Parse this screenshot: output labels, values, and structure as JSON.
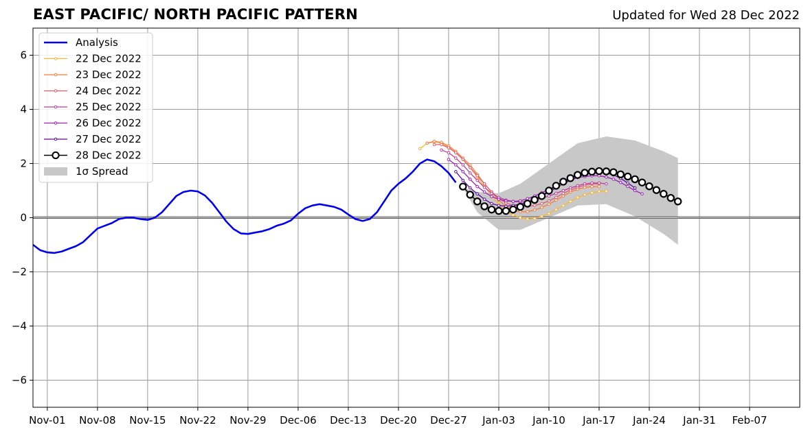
{
  "header": {
    "title": "EAST PACIFIC/ NORTH PACIFIC PATTERN",
    "updated": "Updated for Wed 28 Dec 2022"
  },
  "chart_data": {
    "type": "line",
    "xlabel": "",
    "ylabel": "",
    "x_range": [
      "2022-10-30",
      "2023-02-14"
    ],
    "ylim": [
      -7,
      7
    ],
    "yticks": [
      -6,
      -4,
      -2,
      0,
      2,
      4,
      6
    ],
    "ytick_labels": [
      "−6",
      "−4",
      "−2",
      "0",
      "2",
      "4",
      "6"
    ],
    "xticks": [
      "2022-11-01",
      "2022-11-08",
      "2022-11-15",
      "2022-11-22",
      "2022-11-29",
      "2022-12-06",
      "2022-12-13",
      "2022-12-20",
      "2022-12-27",
      "2023-01-03",
      "2023-01-10",
      "2023-01-17",
      "2023-01-24",
      "2023-01-31",
      "2023-02-07"
    ],
    "xtick_labels": [
      "Nov-01",
      "Nov-08",
      "Nov-15",
      "Nov-22",
      "Nov-29",
      "Dec-06",
      "Dec-13",
      "Dec-20",
      "Dec-27",
      "Jan-03",
      "Jan-10",
      "Jan-17",
      "Jan-24",
      "Jan-31",
      "Feb-07"
    ],
    "grid": true,
    "legend_position": "top-left",
    "legend": [
      "Analysis",
      "22 Dec 2022",
      "23 Dec 2022",
      "24 Dec 2022",
      "25 Dec 2022",
      "26 Dec 2022",
      "27 Dec 2022",
      "28 Dec 2022",
      "1σ Spread"
    ],
    "spread": {
      "name": "1σ Spread",
      "color": "#c8c8c8",
      "x": [
        "2022-12-29",
        "2022-12-31",
        "2023-01-03",
        "2023-01-06",
        "2023-01-10",
        "2023-01-14",
        "2023-01-18",
        "2023-01-22",
        "2023-01-26",
        "2023-01-28"
      ],
      "upper": [
        1.1,
        0.95,
        0.9,
        1.25,
        2.0,
        2.75,
        3.0,
        2.85,
        2.45,
        2.2
      ],
      "lower": [
        1.1,
        0.2,
        -0.45,
        -0.45,
        0.0,
        0.45,
        0.5,
        0.05,
        -0.6,
        -1.0
      ]
    },
    "analysis": {
      "name": "Analysis",
      "color": "#0000ee",
      "x": [
        "2022-10-30",
        "2022-10-31",
        "2022-11-01",
        "2022-11-02",
        "2022-11-03",
        "2022-11-04",
        "2022-11-05",
        "2022-11-06",
        "2022-11-07",
        "2022-11-08",
        "2022-11-09",
        "2022-11-10",
        "2022-11-11",
        "2022-11-12",
        "2022-11-13",
        "2022-11-14",
        "2022-11-15",
        "2022-11-16",
        "2022-11-17",
        "2022-11-18",
        "2022-11-19",
        "2022-11-20",
        "2022-11-21",
        "2022-11-22",
        "2022-11-23",
        "2022-11-24",
        "2022-11-25",
        "2022-11-26",
        "2022-11-27",
        "2022-11-28",
        "2022-11-29",
        "2022-11-30",
        "2022-12-01",
        "2022-12-02",
        "2022-12-03",
        "2022-12-04",
        "2022-12-05",
        "2022-12-06",
        "2022-12-07",
        "2022-12-08",
        "2022-12-09",
        "2022-12-10",
        "2022-12-11",
        "2022-12-12",
        "2022-12-13",
        "2022-12-14",
        "2022-12-15",
        "2022-12-16",
        "2022-12-17",
        "2022-12-18",
        "2022-12-19",
        "2022-12-20",
        "2022-12-21",
        "2022-12-22",
        "2022-12-23",
        "2022-12-24",
        "2022-12-25",
        "2022-12-26",
        "2022-12-27",
        "2022-12-28"
      ],
      "y": [
        -1.0,
        -1.2,
        -1.28,
        -1.3,
        -1.25,
        -1.15,
        -1.05,
        -0.9,
        -0.65,
        -0.4,
        -0.3,
        -0.2,
        -0.05,
        0.0,
        0.0,
        -0.05,
        -0.08,
        0.0,
        0.2,
        0.5,
        0.8,
        0.95,
        1.0,
        0.97,
        0.82,
        0.55,
        0.2,
        -0.15,
        -0.42,
        -0.58,
        -0.6,
        -0.55,
        -0.5,
        -0.42,
        -0.3,
        -0.22,
        -0.1,
        0.15,
        0.35,
        0.45,
        0.5,
        0.45,
        0.4,
        0.3,
        0.12,
        -0.05,
        -0.12,
        -0.05,
        0.2,
        0.6,
        1.0,
        1.25,
        1.45,
        1.7,
        2.0,
        2.15,
        2.08,
        1.9,
        1.65,
        1.3
      ]
    },
    "series": [
      {
        "name": "22 Dec 2022",
        "color": "#fcb531",
        "start": "2022-12-23",
        "values": [
          2.55,
          2.75,
          2.8,
          2.75,
          2.6,
          2.4,
          2.15,
          1.85,
          1.5,
          1.15,
          0.8,
          0.5,
          0.25,
          0.1,
          0.0,
          -0.05,
          -0.03,
          0.05,
          0.15,
          0.3,
          0.45,
          0.6,
          0.75,
          0.85,
          0.92,
          0.97,
          0.98
        ]
      },
      {
        "name": "23 Dec 2022",
        "color": "#f57c3c",
        "start": "2022-12-24",
        "values": [
          2.75,
          2.82,
          2.78,
          2.65,
          2.45,
          2.2,
          1.95,
          1.6,
          1.25,
          0.95,
          0.65,
          0.42,
          0.28,
          0.22,
          0.22,
          0.28,
          0.38,
          0.5,
          0.65,
          0.8,
          0.95,
          1.05,
          1.12,
          1.15,
          1.15
        ]
      },
      {
        "name": "24 Dec 2022",
        "color": "#e05a6e",
        "start": "2022-12-25",
        "values": [
          2.7,
          2.7,
          2.58,
          2.4,
          2.15,
          1.85,
          1.55,
          1.25,
          0.95,
          0.72,
          0.55,
          0.45,
          0.42,
          0.42,
          0.45,
          0.52,
          0.62,
          0.75,
          0.9,
          1.02,
          1.12,
          1.2,
          1.25,
          1.25
        ]
      },
      {
        "name": "25 Dec 2022",
        "color": "#bc3b9a",
        "start": "2022-12-26",
        "values": [
          2.5,
          2.4,
          2.2,
          1.95,
          1.65,
          1.38,
          1.12,
          0.9,
          0.75,
          0.65,
          0.6,
          0.58,
          0.6,
          0.65,
          0.72,
          0.8,
          0.9,
          1.0,
          1.1,
          1.18,
          1.25,
          1.28,
          1.28,
          1.25
        ]
      },
      {
        "name": "26 Dec 2022",
        "color": "#9b1fb8",
        "start": "2022-12-27",
        "values": [
          2.15,
          1.95,
          1.7,
          1.42,
          1.15,
          0.95,
          0.78,
          0.68,
          0.62,
          0.6,
          0.62,
          0.7,
          0.8,
          0.92,
          1.05,
          1.18,
          1.3,
          1.4,
          1.48,
          1.52,
          1.55,
          1.55,
          1.5,
          1.42,
          1.3,
          1.15,
          1.0,
          0.88
        ]
      },
      {
        "name": "27 Dec 2022",
        "color": "#5c07a0",
        "start": "2022-12-28",
        "values": [
          1.7,
          1.38,
          1.1,
          0.88,
          0.68,
          0.52,
          0.45,
          0.42,
          0.45,
          0.5,
          0.58,
          0.68,
          0.8,
          0.95,
          1.1,
          1.25,
          1.38,
          1.5,
          1.6,
          1.65,
          1.68,
          1.65,
          1.58,
          1.45,
          1.28,
          1.1
        ]
      },
      {
        "name": "28 Dec 2022",
        "color": "#000000",
        "start": "2022-12-29",
        "values": [
          1.15,
          0.85,
          0.6,
          0.42,
          0.3,
          0.25,
          0.25,
          0.3,
          0.4,
          0.52,
          0.66,
          0.8,
          1.0,
          1.18,
          1.33,
          1.46,
          1.58,
          1.66,
          1.7,
          1.72,
          1.71,
          1.68,
          1.6,
          1.52,
          1.42,
          1.3,
          1.16,
          1.02,
          0.88,
          0.73,
          0.6
        ]
      }
    ]
  }
}
